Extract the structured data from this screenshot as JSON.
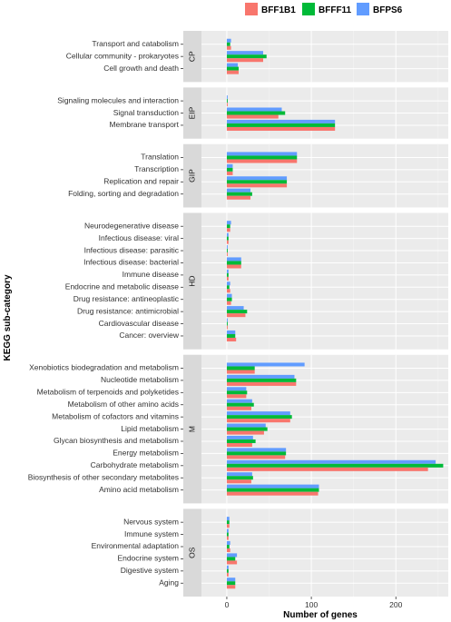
{
  "chart_data": {
    "type": "bar",
    "orientation": "horizontal",
    "xlabel": "Number of genes",
    "ylabel": "KEGG sub-category",
    "xlim": [
      -30,
      262
    ],
    "x_ticks": [
      0,
      100,
      200
    ],
    "grid": true,
    "legend_position": "top-right",
    "series": [
      {
        "name": "BFF1B1",
        "color": "#F8766D"
      },
      {
        "name": "BFFF11",
        "color": "#00BA38"
      },
      {
        "name": "BFPS6",
        "color": "#619CFF"
      }
    ],
    "facets": [
      {
        "label": "CP",
        "categories": [
          {
            "name": "Transport and catabolism",
            "values": [
              5,
              4,
              5
            ]
          },
          {
            "name": "Cellular community - prokaryotes",
            "values": [
              43,
              47,
              43
            ]
          },
          {
            "name": "Cell growth and death",
            "values": [
              14,
              14,
              13
            ]
          }
        ]
      },
      {
        "label": "EIP",
        "categories": [
          {
            "name": "Signaling molecules and interaction",
            "values": [
              1,
              1,
              1
            ]
          },
          {
            "name": "Signal transduction",
            "values": [
              61,
              69,
              65
            ]
          },
          {
            "name": "Membrane transport",
            "values": [
              128,
              128,
              128
            ]
          }
        ]
      },
      {
        "label": "GIP",
        "categories": [
          {
            "name": "Translation",
            "values": [
              83,
              83,
              83
            ]
          },
          {
            "name": "Transcription",
            "values": [
              7,
              7,
              7
            ]
          },
          {
            "name": "Replication and repair",
            "values": [
              71,
              71,
              71
            ]
          },
          {
            "name": "Folding, sorting and degradation",
            "values": [
              28,
              30,
              28
            ]
          }
        ]
      },
      {
        "label": "HD",
        "categories": [
          {
            "name": "Neurodegenerative disease",
            "values": [
              4,
              4,
              5
            ]
          },
          {
            "name": "Infectious disease: viral",
            "values": [
              2,
              2,
              2
            ]
          },
          {
            "name": "Infectious disease: parasitic",
            "values": [
              1,
              1,
              1
            ]
          },
          {
            "name": "Infectious disease: bacterial",
            "values": [
              17,
              17,
              17
            ]
          },
          {
            "name": "Immune disease",
            "values": [
              2,
              2,
              2
            ]
          },
          {
            "name": "Endocrine and metabolic disease",
            "values": [
              4,
              3,
              4
            ]
          },
          {
            "name": "Drug resistance: antineoplastic",
            "values": [
              5,
              6,
              6
            ]
          },
          {
            "name": "Drug resistance: antimicrobial",
            "values": [
              22,
              24,
              20
            ]
          },
          {
            "name": "Cardiovascular disease",
            "values": [
              1,
              1,
              1
            ]
          },
          {
            "name": "Cancer: overview",
            "values": [
              11,
              10,
              10
            ]
          }
        ]
      },
      {
        "label": "M",
        "categories": [
          {
            "name": "Xenobiotics biodegradation and metabolism",
            "values": [
              33,
              33,
              92
            ]
          },
          {
            "name": "Nucleotide metabolism",
            "values": [
              82,
              82,
              80
            ]
          },
          {
            "name": "Metabolism of terpenoids and polyketides",
            "values": [
              23,
              24,
              23
            ]
          },
          {
            "name": "Metabolism of other amino acids",
            "values": [
              29,
              32,
              30
            ]
          },
          {
            "name": "Metabolism of cofactors and vitamins",
            "values": [
              75,
              77,
              75
            ]
          },
          {
            "name": "Lipid metabolism",
            "values": [
              44,
              48,
              46
            ]
          },
          {
            "name": "Glycan biosynthesis and metabolism",
            "values": [
              30,
              34,
              31
            ]
          },
          {
            "name": "Energy metabolism",
            "values": [
              69,
              70,
              70
            ]
          },
          {
            "name": "Carbohydrate metabolism",
            "values": [
              238,
              256,
              247
            ]
          },
          {
            "name": "Biosynthesis of other secondary metabolites",
            "values": [
              29,
              31,
              30
            ]
          },
          {
            "name": "Amino acid metabolism",
            "values": [
              108,
              109,
              109
            ]
          }
        ]
      },
      {
        "label": "OS",
        "categories": [
          {
            "name": "Nervous system",
            "values": [
              3,
              3,
              3
            ]
          },
          {
            "name": "Immune system",
            "values": [
              2,
              2,
              2
            ]
          },
          {
            "name": "Environmental adaptation",
            "values": [
              4,
              3,
              4
            ]
          },
          {
            "name": "Endocrine system",
            "values": [
              12,
              10,
              12
            ]
          },
          {
            "name": "Digestive system",
            "values": [
              2,
              2,
              2
            ]
          },
          {
            "name": "Aging",
            "values": [
              10,
              10,
              10
            ]
          }
        ]
      }
    ]
  }
}
